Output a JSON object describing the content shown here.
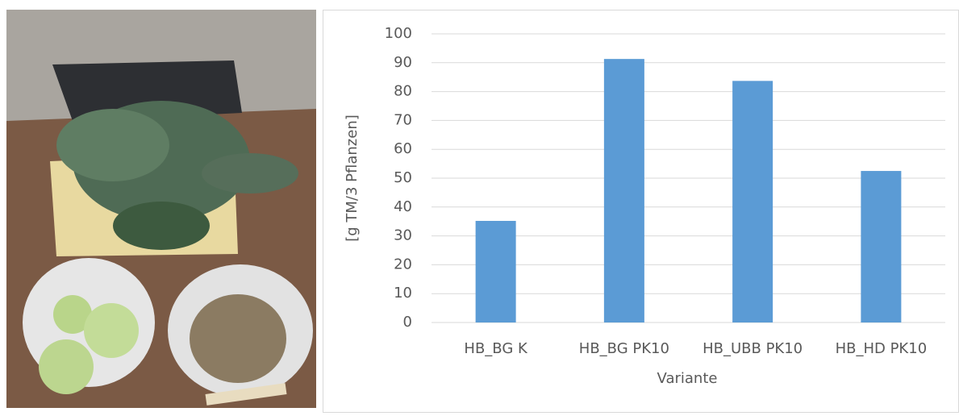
{
  "chart_data": {
    "type": "bar",
    "x_label": "Variante",
    "y_label": "[g TM/3 Pflanzen]",
    "categories": [
      "HB_BG K",
      "HB_BG PK10",
      "HB_UBB PK10",
      "HB_HD PK10"
    ],
    "values": [
      35.2,
      91.3,
      83.7,
      52.5
    ],
    "color": "#5b9bd5",
    "ylim": [
      0,
      100
    ],
    "yticks": [
      0,
      10,
      20,
      30,
      40,
      50,
      60,
      70,
      80,
      90,
      100
    ],
    "grid": true
  }
}
